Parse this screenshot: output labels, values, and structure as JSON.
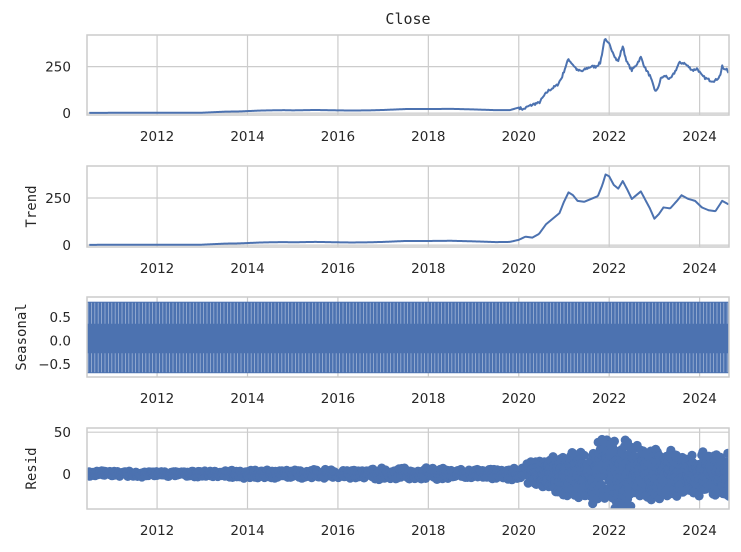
{
  "chart_data": {
    "type": "line",
    "title": "Close",
    "x_ticks": [
      "2012",
      "2014",
      "2016",
      "2018",
      "2020",
      "2022",
      "2024"
    ],
    "xlim": [
      2010.45,
      2024.65
    ],
    "grid": true,
    "line_color": "#4c72b0",
    "panels": [
      {
        "name": "observed",
        "ylabel": "",
        "y_ticks": [
          "0",
          "250"
        ],
        "ylim": [
          -10,
          420
        ],
        "points": [
          [
            2010.5,
            1.5
          ],
          [
            2011.0,
            1.8
          ],
          [
            2011.5,
            2.0
          ],
          [
            2012.0,
            2.2
          ],
          [
            2012.5,
            2.0
          ],
          [
            2013.0,
            2.3
          ],
          [
            2013.5,
            8
          ],
          [
            2013.8,
            9
          ],
          [
            2014.0,
            11
          ],
          [
            2014.3,
            14
          ],
          [
            2014.5,
            15
          ],
          [
            2014.8,
            16
          ],
          [
            2015.0,
            15
          ],
          [
            2015.5,
            17
          ],
          [
            2016.0,
            15
          ],
          [
            2016.3,
            14
          ],
          [
            2016.7,
            15
          ],
          [
            2017.0,
            17
          ],
          [
            2017.5,
            22
          ],
          [
            2018.0,
            22
          ],
          [
            2018.5,
            23
          ],
          [
            2019.0,
            20
          ],
          [
            2019.5,
            16
          ],
          [
            2019.8,
            16
          ],
          [
            2020.0,
            30
          ],
          [
            2020.1,
            20
          ],
          [
            2020.2,
            35
          ],
          [
            2020.35,
            50
          ],
          [
            2020.45,
            55
          ],
          [
            2020.55,
            90
          ],
          [
            2020.65,
            120
          ],
          [
            2020.75,
            135
          ],
          [
            2020.85,
            150
          ],
          [
            2020.95,
            190
          ],
          [
            2021.05,
            260
          ],
          [
            2021.1,
            290
          ],
          [
            2021.2,
            260
          ],
          [
            2021.3,
            230
          ],
          [
            2021.4,
            225
          ],
          [
            2021.5,
            240
          ],
          [
            2021.6,
            250
          ],
          [
            2021.7,
            250
          ],
          [
            2021.8,
            270
          ],
          [
            2021.85,
            330
          ],
          [
            2021.9,
            400
          ],
          [
            2021.95,
            380
          ],
          [
            2022.0,
            370
          ],
          [
            2022.1,
            320
          ],
          [
            2022.15,
            290
          ],
          [
            2022.2,
            280
          ],
          [
            2022.3,
            360
          ],
          [
            2022.35,
            310
          ],
          [
            2022.4,
            270
          ],
          [
            2022.5,
            230
          ],
          [
            2022.6,
            260
          ],
          [
            2022.7,
            300
          ],
          [
            2022.8,
            240
          ],
          [
            2022.9,
            200
          ],
          [
            2023.0,
            130
          ],
          [
            2023.05,
            115
          ],
          [
            2023.15,
            190
          ],
          [
            2023.25,
            200
          ],
          [
            2023.35,
            180
          ],
          [
            2023.45,
            220
          ],
          [
            2023.55,
            270
          ],
          [
            2023.65,
            270
          ],
          [
            2023.75,
            250
          ],
          [
            2023.85,
            230
          ],
          [
            2023.95,
            240
          ],
          [
            2024.05,
            200
          ],
          [
            2024.15,
            185
          ],
          [
            2024.25,
            175
          ],
          [
            2024.35,
            175
          ],
          [
            2024.45,
            200
          ],
          [
            2024.5,
            250
          ],
          [
            2024.55,
            230
          ],
          [
            2024.6,
            240
          ],
          [
            2024.65,
            215
          ]
        ]
      },
      {
        "name": "trend",
        "ylabel": "Trend",
        "y_ticks": [
          "0",
          "250"
        ],
        "ylim": [
          -10,
          420
        ],
        "points": [
          [
            2010.5,
            1.5
          ],
          [
            2011.0,
            1.8
          ],
          [
            2011.5,
            2.0
          ],
          [
            2012.0,
            2.2
          ],
          [
            2012.5,
            2.0
          ],
          [
            2013.0,
            2.3
          ],
          [
            2013.5,
            8
          ],
          [
            2013.8,
            9
          ],
          [
            2014.0,
            11
          ],
          [
            2014.3,
            14
          ],
          [
            2014.5,
            15
          ],
          [
            2014.8,
            16
          ],
          [
            2015.0,
            15
          ],
          [
            2015.5,
            17
          ],
          [
            2016.0,
            15
          ],
          [
            2016.3,
            14
          ],
          [
            2016.7,
            15
          ],
          [
            2017.0,
            17
          ],
          [
            2017.5,
            22
          ],
          [
            2018.0,
            22
          ],
          [
            2018.5,
            23
          ],
          [
            2019.0,
            20
          ],
          [
            2019.5,
            16
          ],
          [
            2019.8,
            17
          ],
          [
            2020.0,
            28
          ],
          [
            2020.15,
            45
          ],
          [
            2020.3,
            40
          ],
          [
            2020.45,
            60
          ],
          [
            2020.6,
            110
          ],
          [
            2020.75,
            140
          ],
          [
            2020.9,
            170
          ],
          [
            2021.0,
            230
          ],
          [
            2021.1,
            280
          ],
          [
            2021.2,
            265
          ],
          [
            2021.3,
            235
          ],
          [
            2021.45,
            230
          ],
          [
            2021.6,
            245
          ],
          [
            2021.75,
            260
          ],
          [
            2021.85,
            320
          ],
          [
            2021.92,
            375
          ],
          [
            2022.0,
            365
          ],
          [
            2022.1,
            320
          ],
          [
            2022.2,
            300
          ],
          [
            2022.3,
            340
          ],
          [
            2022.4,
            295
          ],
          [
            2022.5,
            245
          ],
          [
            2022.6,
            265
          ],
          [
            2022.7,
            285
          ],
          [
            2022.8,
            240
          ],
          [
            2022.9,
            195
          ],
          [
            2023.0,
            140
          ],
          [
            2023.1,
            165
          ],
          [
            2023.2,
            200
          ],
          [
            2023.35,
            195
          ],
          [
            2023.5,
            235
          ],
          [
            2023.6,
            265
          ],
          [
            2023.75,
            245
          ],
          [
            2023.9,
            235
          ],
          [
            2024.05,
            200
          ],
          [
            2024.2,
            185
          ],
          [
            2024.35,
            180
          ],
          [
            2024.5,
            235
          ],
          [
            2024.65,
            215
          ]
        ]
      },
      {
        "name": "seasonal",
        "ylabel": "Seasonal",
        "y_ticks": [
          "−0.5",
          "0.0",
          "0.5"
        ],
        "ylim": [
          -0.78,
          0.92
        ],
        "band_min": -0.7,
        "band_max": 0.82
      },
      {
        "name": "resid",
        "ylabel": "Resid",
        "y_ticks": [
          "0",
          "50"
        ],
        "ylim": [
          -42,
          55
        ],
        "envelope": [
          [
            2010.5,
            4
          ],
          [
            2013.0,
            4
          ],
          [
            2014.0,
            6
          ],
          [
            2016.0,
            6
          ],
          [
            2018.0,
            8
          ],
          [
            2019.5,
            6
          ],
          [
            2020.0,
            10
          ],
          [
            2020.5,
            20
          ],
          [
            2021.0,
            30
          ],
          [
            2021.5,
            30
          ],
          [
            2021.8,
            48
          ],
          [
            2022.2,
            48
          ],
          [
            2022.6,
            40
          ],
          [
            2023.0,
            36
          ],
          [
            2023.5,
            28
          ],
          [
            2024.0,
            28
          ],
          [
            2024.65,
            30
          ]
        ]
      }
    ]
  }
}
